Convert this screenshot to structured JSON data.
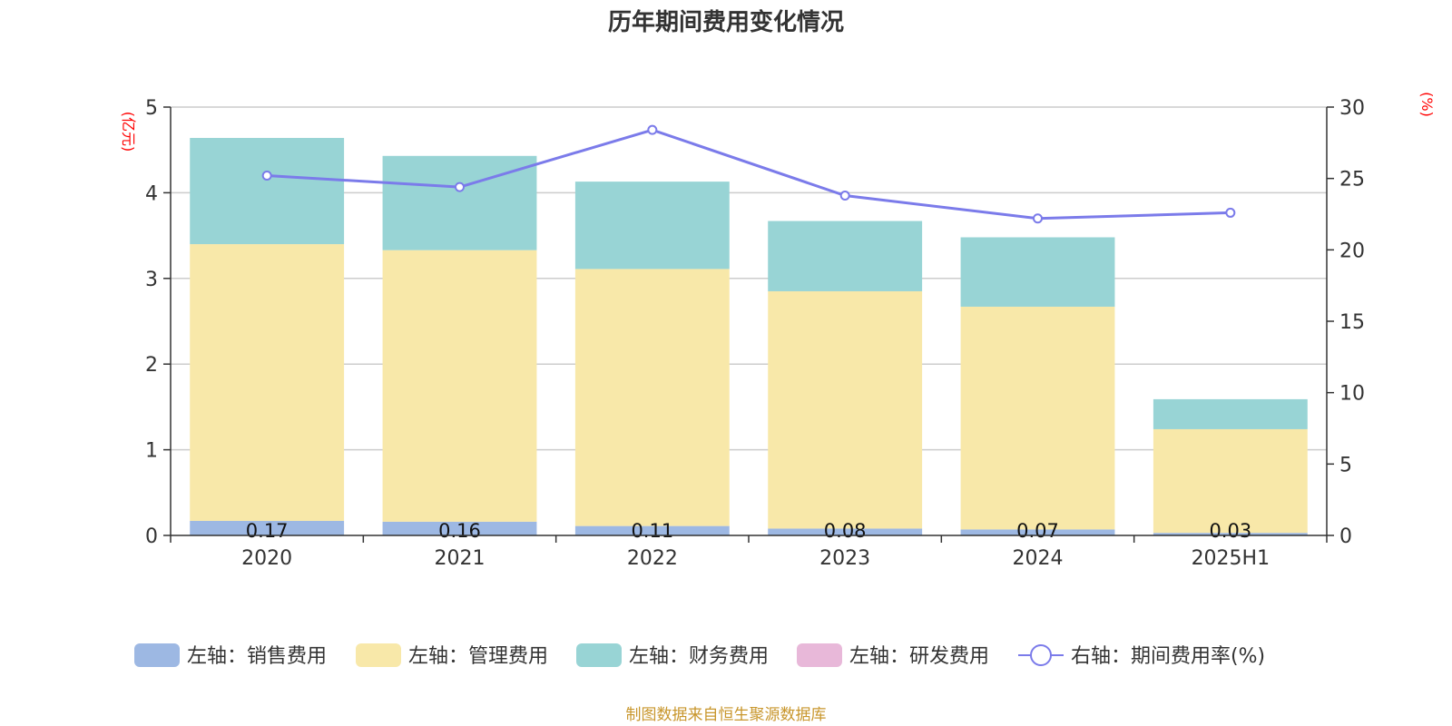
{
  "chart_data": {
    "type": "bar",
    "title": "历年期间费用变化情况",
    "categories": [
      "2020",
      "2021",
      "2022",
      "2023",
      "2024",
      "2025H1"
    ],
    "left_axis": {
      "unit": "(亿元)",
      "ylim": [
        0,
        5
      ],
      "ticks": [
        "0",
        "1",
        "2",
        "3",
        "4",
        "5"
      ]
    },
    "right_axis": {
      "unit": "(%)",
      "ylim": [
        0,
        30
      ],
      "ticks": [
        "0",
        "5",
        "10",
        "15",
        "20",
        "25",
        "30"
      ]
    },
    "series": [
      {
        "name": "左轴：销售费用",
        "type": "bar",
        "stack": "total",
        "axis": "left",
        "color": "#9db8e3",
        "values": [
          0.17,
          0.16,
          0.11,
          0.08,
          0.07,
          0.03
        ],
        "labels": [
          "0.17",
          "0.16",
          "0.11",
          "0.08",
          "0.07",
          "0.03"
        ]
      },
      {
        "name": "左轴：管理费用",
        "type": "bar",
        "stack": "total",
        "axis": "left",
        "color": "#f8e8a9",
        "values": [
          3.23,
          3.17,
          3.0,
          2.77,
          2.6,
          1.21
        ]
      },
      {
        "name": "左轴：财务费用",
        "type": "bar",
        "stack": "total",
        "axis": "left",
        "color": "#98d4d5",
        "values": [
          1.24,
          1.1,
          1.02,
          0.82,
          0.81,
          0.35
        ]
      },
      {
        "name": "左轴：研发费用",
        "type": "bar",
        "stack": "total",
        "axis": "left",
        "color": "#e8b8d9",
        "values": [
          0,
          0,
          0,
          0,
          0,
          0
        ]
      },
      {
        "name": "右轴：期间费用率(%)",
        "type": "line",
        "axis": "right",
        "color": "#7b7bea",
        "values": [
          25.2,
          24.4,
          28.4,
          23.8,
          22.2,
          22.6
        ]
      }
    ],
    "grid": true,
    "legend_position": "bottom",
    "source": "制图数据来自恒生聚源数据库"
  }
}
